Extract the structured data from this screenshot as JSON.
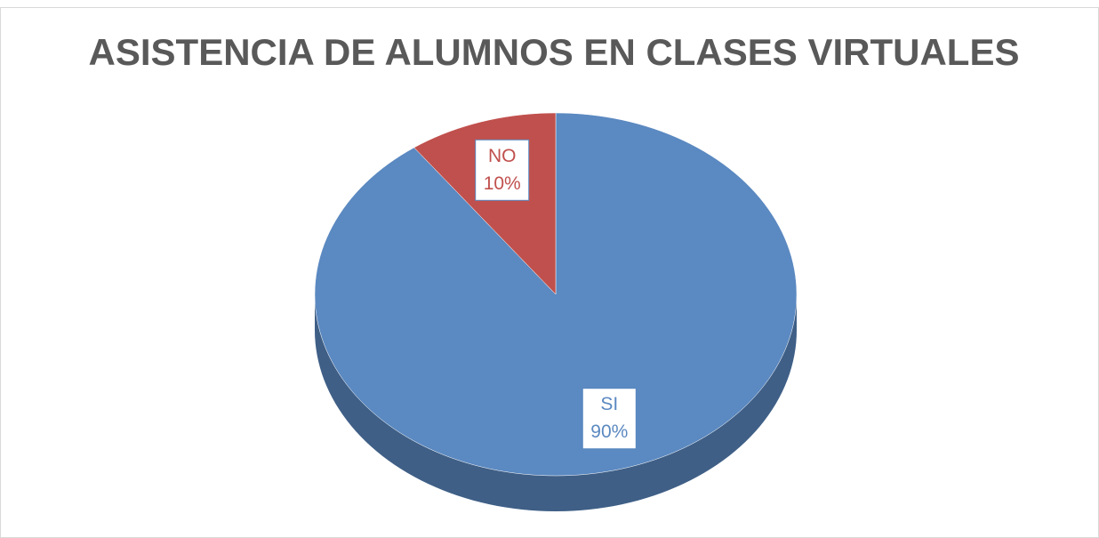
{
  "chart_data": {
    "type": "pie",
    "title": "ASISTENCIA DE ALUMNOS EN CLASES VIRTUALES",
    "categories": [
      "SI",
      "NO"
    ],
    "values": [
      90,
      10
    ],
    "value_labels": [
      "90%",
      "10%"
    ],
    "colors": [
      "#5b89c1",
      "#c0504d"
    ],
    "start_angle": 0,
    "direction": "clockwise"
  }
}
